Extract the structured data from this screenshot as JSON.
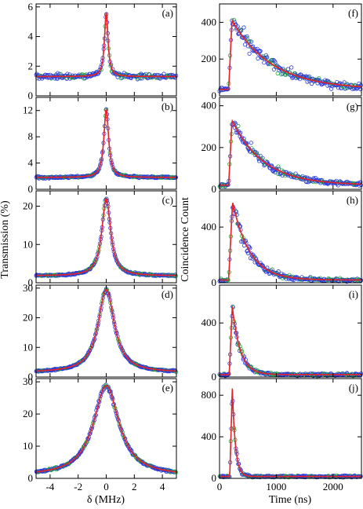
{
  "colors": {
    "data_points": "#2a3ad8",
    "data_points_alt": "#22a838",
    "fit_line": "#e8202a",
    "fit_dashed": "#22a838"
  },
  "left": {
    "ylabel": "Transmission (%)",
    "xlabel": "δ (MHz)",
    "xticks": [
      -4,
      -2,
      0,
      2,
      4
    ],
    "xlim": [
      -5,
      5
    ]
  },
  "right": {
    "ylabel": "Coincidence Count",
    "xlabel": "Time (ns)",
    "xticks": [
      0,
      1000,
      2000
    ],
    "xlim": [
      0,
      2500
    ]
  },
  "chart_data": [
    {
      "type": "scatter",
      "panel": "(a)",
      "side": "left",
      "ylim": [
        0,
        6.2
      ],
      "yticks": [
        0,
        2,
        4,
        6
      ],
      "baseline": 1.3,
      "peak": 5.6,
      "center": 0,
      "fwhm": 0.3,
      "noise": 0.18
    },
    {
      "type": "scatter",
      "panel": "(b)",
      "side": "left",
      "ylim": [
        0,
        14
      ],
      "yticks": [
        0,
        4,
        8,
        12
      ],
      "baseline": 1.8,
      "peak": 12.2,
      "center": 0,
      "fwhm": 0.4,
      "noise": 0.15
    },
    {
      "type": "scatter",
      "panel": "(c)",
      "side": "left",
      "ylim": [
        0,
        24
      ],
      "yticks": [
        0,
        10,
        20
      ],
      "baseline": 1.8,
      "peak": 22,
      "center": 0,
      "fwhm": 0.75,
      "noise": 0.2
    },
    {
      "type": "scatter",
      "panel": "(d)",
      "side": "left",
      "ylim": [
        0,
        31
      ],
      "yticks": [
        0,
        10,
        20,
        30
      ],
      "baseline": 1.5,
      "peak": 29.5,
      "center": 0,
      "fwhm": 1.4,
      "noise": 0.25
    },
    {
      "type": "scatter",
      "panel": "(e)",
      "side": "left",
      "ylim": [
        0,
        31
      ],
      "yticks": [
        0,
        10,
        20,
        30
      ],
      "baseline": 0.7,
      "peak": 28.8,
      "center": 0,
      "fwhm": 2.2,
      "noise": 0.3
    },
    {
      "type": "scatter",
      "panel": "(f)",
      "side": "right",
      "ylim": [
        0,
        500
      ],
      "yticks": [
        0,
        200,
        400
      ],
      "background": 35,
      "onset": 160,
      "rise_end": 220,
      "peak": 410,
      "tau": 700,
      "noise": 22
    },
    {
      "type": "scatter",
      "panel": "(g)",
      "side": "right",
      "ylim": [
        0,
        440
      ],
      "yticks": [
        0,
        200,
        400
      ],
      "background": 20,
      "onset": 160,
      "rise_end": 220,
      "peak": 330,
      "tau": 550,
      "noise": 18
    },
    {
      "type": "scatter",
      "panel": "(h)",
      "side": "right",
      "ylim": [
        0,
        660
      ],
      "yticks": [
        0,
        400
      ],
      "background": 20,
      "onset": 160,
      "rise_end": 230,
      "peak": 580,
      "tau": 300,
      "noise": 25
    },
    {
      "type": "scatter",
      "panel": "(i)",
      "side": "right",
      "ylim": [
        0,
        680
      ],
      "yticks": [
        0,
        400
      ],
      "background": 18,
      "onset": 170,
      "rise_end": 225,
      "peak": 520,
      "tau": 140,
      "noise": 20
    },
    {
      "type": "scatter",
      "panel": "(j)",
      "side": "right",
      "ylim": [
        0,
        960
      ],
      "yticks": [
        0,
        400,
        800
      ],
      "background": 18,
      "onset": 180,
      "rise_end": 225,
      "peak": 860,
      "tau": 55,
      "noise": 20
    }
  ]
}
